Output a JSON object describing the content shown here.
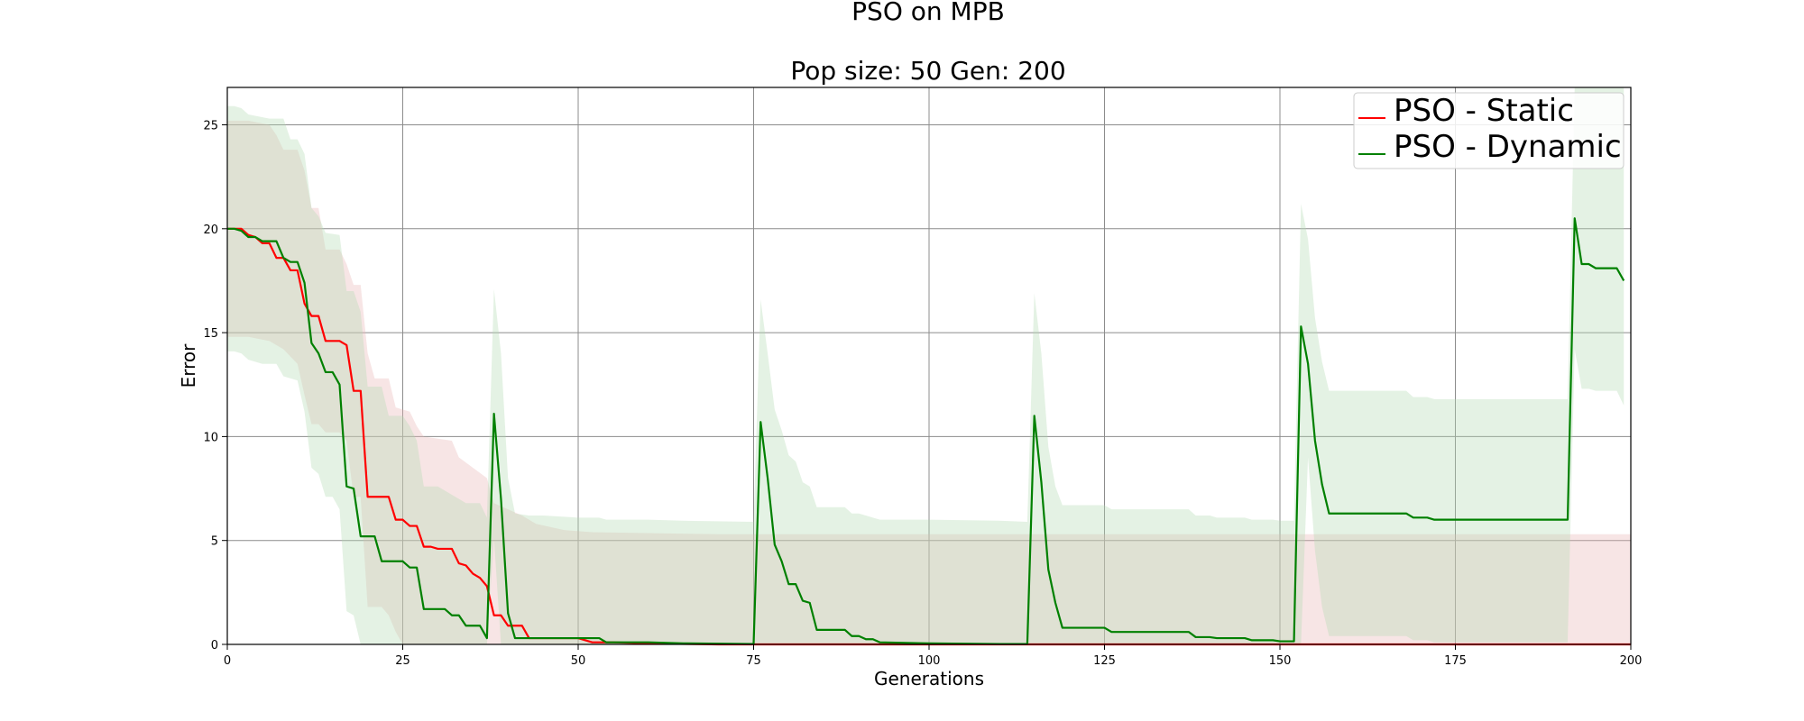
{
  "chart_data": {
    "type": "line",
    "title": "PSO on MPB",
    "subtitle": "Pop size: 50  Gen: 200",
    "xlabel": "Generations",
    "ylabel": "Error",
    "xlim": [
      0,
      200
    ],
    "ylim": [
      0,
      26.8
    ],
    "xticks": [
      0,
      25,
      50,
      75,
      100,
      125,
      150,
      175,
      200
    ],
    "yticks": [
      0,
      5,
      10,
      15,
      20,
      25
    ],
    "xtick_labels": [
      "0",
      "25",
      "50",
      "75",
      "100",
      "125",
      "150",
      "175",
      "200"
    ],
    "ytick_labels": [
      "0",
      "5",
      "10",
      "15",
      "20",
      "25"
    ],
    "grid": true,
    "legend_position": "top-right",
    "series": [
      {
        "name": "PSO - Static",
        "color": "#ff0000",
        "band_color": "#e8b4b4",
        "mean": [
          [
            0,
            20
          ],
          [
            1,
            20
          ],
          [
            2,
            20
          ],
          [
            3,
            19.7
          ],
          [
            4,
            19.6
          ],
          [
            5,
            19.3
          ],
          [
            6,
            19.3
          ],
          [
            7,
            18.6
          ],
          [
            8,
            18.6
          ],
          [
            9,
            18
          ],
          [
            10,
            18
          ],
          [
            11,
            16.4
          ],
          [
            12,
            15.8
          ],
          [
            13,
            15.8
          ],
          [
            14,
            14.6
          ],
          [
            15,
            14.6
          ],
          [
            16,
            14.6
          ],
          [
            17,
            14.4
          ],
          [
            18,
            12.2
          ],
          [
            19,
            12.2
          ],
          [
            20,
            7.1
          ],
          [
            21,
            7.1
          ],
          [
            22,
            7.1
          ],
          [
            23,
            7.1
          ],
          [
            24,
            6
          ],
          [
            25,
            6
          ],
          [
            26,
            5.7
          ],
          [
            27,
            5.7
          ],
          [
            28,
            4.7
          ],
          [
            29,
            4.7
          ],
          [
            30,
            4.6
          ],
          [
            31,
            4.6
          ],
          [
            32,
            4.6
          ],
          [
            33,
            3.9
          ],
          [
            34,
            3.8
          ],
          [
            35,
            3.4
          ],
          [
            36,
            3.2
          ],
          [
            37,
            2.8
          ],
          [
            38,
            1.4
          ],
          [
            39,
            1.4
          ],
          [
            40,
            0.9
          ],
          [
            41,
            0.9
          ],
          [
            42,
            0.9
          ],
          [
            43,
            0.3
          ],
          [
            45,
            0.3
          ],
          [
            50,
            0.3
          ],
          [
            52,
            0.1
          ],
          [
            55,
            0.1
          ],
          [
            60,
            0.05
          ],
          [
            70,
            0
          ],
          [
            200,
            0
          ]
        ],
        "upper": [
          [
            0,
            25.2
          ],
          [
            3,
            25.2
          ],
          [
            6,
            25
          ],
          [
            7,
            24.5
          ],
          [
            8,
            23.8
          ],
          [
            10,
            23.8
          ],
          [
            11,
            22.8
          ],
          [
            12,
            21
          ],
          [
            13,
            21
          ],
          [
            14,
            19
          ],
          [
            16,
            19
          ],
          [
            17,
            18.3
          ],
          [
            18,
            17.3
          ],
          [
            19,
            17.3
          ],
          [
            20,
            14
          ],
          [
            21,
            12.8
          ],
          [
            22,
            12.8
          ],
          [
            23,
            12.8
          ],
          [
            24,
            11.4
          ],
          [
            26,
            11.2
          ],
          [
            27,
            10.5
          ],
          [
            28,
            10
          ],
          [
            30,
            9.9
          ],
          [
            32,
            9.8
          ],
          [
            33,
            9
          ],
          [
            35,
            8.5
          ],
          [
            37,
            8
          ],
          [
            38,
            6.8
          ],
          [
            40,
            6.5
          ],
          [
            42,
            6.2
          ],
          [
            44,
            5.8
          ],
          [
            48,
            5.5
          ],
          [
            52,
            5.4
          ],
          [
            70,
            5.3
          ],
          [
            200,
            5.3
          ]
        ],
        "lower": [
          [
            0,
            14.8
          ],
          [
            3,
            14.8
          ],
          [
            6,
            14.6
          ],
          [
            8,
            14.2
          ],
          [
            10,
            13.5
          ],
          [
            11,
            12
          ],
          [
            12,
            10.6
          ],
          [
            13,
            10.6
          ],
          [
            14,
            10.2
          ],
          [
            16,
            10.2
          ],
          [
            17,
            9.8
          ],
          [
            18,
            7.1
          ],
          [
            19,
            7.1
          ],
          [
            20,
            1.8
          ],
          [
            22,
            1.8
          ],
          [
            23,
            1.4
          ],
          [
            24,
            0.6
          ],
          [
            25,
            0
          ],
          [
            200,
            0
          ]
        ]
      },
      {
        "name": "PSO - Dynamic",
        "color": "#008000",
        "band_color": "#b3d9b3",
        "mean": [
          [
            0,
            20
          ],
          [
            1,
            20
          ],
          [
            2,
            19.9
          ],
          [
            3,
            19.6
          ],
          [
            4,
            19.6
          ],
          [
            5,
            19.4
          ],
          [
            6,
            19.4
          ],
          [
            7,
            19.4
          ],
          [
            8,
            18.6
          ],
          [
            9,
            18.4
          ],
          [
            10,
            18.4
          ],
          [
            11,
            17.4
          ],
          [
            12,
            14.5
          ],
          [
            13,
            14
          ],
          [
            14,
            13.1
          ],
          [
            15,
            13.1
          ],
          [
            16,
            12.5
          ],
          [
            17,
            7.6
          ],
          [
            18,
            7.5
          ],
          [
            19,
            5.2
          ],
          [
            20,
            5.2
          ],
          [
            21,
            5.2
          ],
          [
            22,
            4
          ],
          [
            23,
            4
          ],
          [
            24,
            4
          ],
          [
            25,
            4
          ],
          [
            26,
            3.7
          ],
          [
            27,
            3.7
          ],
          [
            28,
            1.7
          ],
          [
            29,
            1.7
          ],
          [
            30,
            1.7
          ],
          [
            31,
            1.7
          ],
          [
            32,
            1.4
          ],
          [
            33,
            1.4
          ],
          [
            34,
            0.9
          ],
          [
            35,
            0.9
          ],
          [
            36,
            0.9
          ],
          [
            37,
            0.3
          ],
          [
            38,
            11.1
          ],
          [
            39,
            7
          ],
          [
            40,
            1.5
          ],
          [
            41,
            0.3
          ],
          [
            43,
            0.3
          ],
          [
            45,
            0.3
          ],
          [
            53,
            0.3
          ],
          [
            54,
            0.1
          ],
          [
            60,
            0.1
          ],
          [
            65,
            0.05
          ],
          [
            75,
            0.02
          ],
          [
            76,
            10.7
          ],
          [
            77,
            8
          ],
          [
            78,
            4.8
          ],
          [
            79,
            4
          ],
          [
            80,
            2.9
          ],
          [
            81,
            2.9
          ],
          [
            82,
            2.1
          ],
          [
            83,
            2
          ],
          [
            84,
            0.7
          ],
          [
            88,
            0.7
          ],
          [
            89,
            0.4
          ],
          [
            90,
            0.4
          ],
          [
            91,
            0.25
          ],
          [
            92,
            0.25
          ],
          [
            93,
            0.1
          ],
          [
            100,
            0.05
          ],
          [
            110,
            0.02
          ],
          [
            114,
            0.02
          ],
          [
            115,
            11
          ],
          [
            116,
            7.8
          ],
          [
            117,
            3.6
          ],
          [
            118,
            2
          ],
          [
            119,
            0.8
          ],
          [
            125,
            0.8
          ],
          [
            126,
            0.6
          ],
          [
            137,
            0.6
          ],
          [
            138,
            0.35
          ],
          [
            140,
            0.35
          ],
          [
            141,
            0.3
          ],
          [
            145,
            0.3
          ],
          [
            146,
            0.2
          ],
          [
            149,
            0.2
          ],
          [
            150,
            0.15
          ],
          [
            152,
            0.15
          ],
          [
            153,
            15.3
          ],
          [
            154,
            13.5
          ],
          [
            155,
            9.8
          ],
          [
            156,
            7.7
          ],
          [
            157,
            6.3
          ],
          [
            168,
            6.3
          ],
          [
            169,
            6.1
          ],
          [
            171,
            6.1
          ],
          [
            172,
            6
          ],
          [
            191,
            6
          ],
          [
            192,
            20.5
          ],
          [
            193,
            18.3
          ],
          [
            194,
            18.3
          ],
          [
            195,
            18.1
          ],
          [
            198,
            18.1
          ],
          [
            199,
            17.5
          ]
        ],
        "upper": [
          [
            0,
            25.9
          ],
          [
            1,
            25.9
          ],
          [
            2,
            25.8
          ],
          [
            3,
            25.5
          ],
          [
            6,
            25.3
          ],
          [
            8,
            25.3
          ],
          [
            9,
            24.3
          ],
          [
            10,
            24.3
          ],
          [
            11,
            23.6
          ],
          [
            12,
            21
          ],
          [
            13,
            20.6
          ],
          [
            14,
            19.8
          ],
          [
            16,
            19.7
          ],
          [
            17,
            17
          ],
          [
            18,
            17
          ],
          [
            19,
            16
          ],
          [
            20,
            12.4
          ],
          [
            22,
            12.4
          ],
          [
            23,
            11
          ],
          [
            25,
            11
          ],
          [
            26,
            10.5
          ],
          [
            27,
            9.8
          ],
          [
            28,
            7.6
          ],
          [
            30,
            7.6
          ],
          [
            32,
            7.2
          ],
          [
            34,
            6.8
          ],
          [
            36,
            6.8
          ],
          [
            37,
            6.1
          ],
          [
            38,
            17.1
          ],
          [
            39,
            14
          ],
          [
            40,
            8
          ],
          [
            41,
            6.3
          ],
          [
            43,
            6.2
          ],
          [
            45,
            6.2
          ],
          [
            50,
            6.1
          ],
          [
            53,
            6.1
          ],
          [
            54,
            6
          ],
          [
            60,
            6
          ],
          [
            65,
            5.95
          ],
          [
            75,
            5.9
          ],
          [
            76,
            16.6
          ],
          [
            77,
            14
          ],
          [
            78,
            11.3
          ],
          [
            79,
            10.3
          ],
          [
            80,
            9.1
          ],
          [
            81,
            8.8
          ],
          [
            82,
            7.8
          ],
          [
            83,
            7.6
          ],
          [
            84,
            6.6
          ],
          [
            88,
            6.6
          ],
          [
            89,
            6.3
          ],
          [
            90,
            6.3
          ],
          [
            91,
            6.2
          ],
          [
            92,
            6.1
          ],
          [
            93,
            6
          ],
          [
            100,
            6
          ],
          [
            110,
            5.95
          ],
          [
            114,
            5.9
          ],
          [
            115,
            16.9
          ],
          [
            116,
            14
          ],
          [
            117,
            9.5
          ],
          [
            118,
            7.6
          ],
          [
            119,
            6.7
          ],
          [
            125,
            6.7
          ],
          [
            126,
            6.5
          ],
          [
            137,
            6.5
          ],
          [
            138,
            6.2
          ],
          [
            140,
            6.2
          ],
          [
            141,
            6.1
          ],
          [
            145,
            6.1
          ],
          [
            146,
            6
          ],
          [
            149,
            6
          ],
          [
            150,
            5.95
          ],
          [
            152,
            5.95
          ],
          [
            153,
            21.2
          ],
          [
            154,
            19.5
          ],
          [
            155,
            15.7
          ],
          [
            156,
            13.6
          ],
          [
            157,
            12.2
          ],
          [
            168,
            12.2
          ],
          [
            169,
            11.9
          ],
          [
            171,
            11.9
          ],
          [
            172,
            11.8
          ],
          [
            191,
            11.8
          ],
          [
            192,
            26.8
          ],
          [
            199,
            26.8
          ]
        ],
        "lower": [
          [
            0,
            14.1
          ],
          [
            1,
            14.1
          ],
          [
            2,
            14
          ],
          [
            3,
            13.7
          ],
          [
            5,
            13.5
          ],
          [
            7,
            13.5
          ],
          [
            8,
            12.9
          ],
          [
            10,
            12.7
          ],
          [
            11,
            11.2
          ],
          [
            12,
            8.5
          ],
          [
            13,
            8.2
          ],
          [
            14,
            7.1
          ],
          [
            15,
            7.1
          ],
          [
            16,
            6.5
          ],
          [
            17,
            1.6
          ],
          [
            18,
            1.4
          ],
          [
            19,
            0
          ],
          [
            37,
            0
          ],
          [
            38,
            5.1
          ],
          [
            39,
            0
          ],
          [
            153,
            0
          ],
          [
            154,
            9
          ],
          [
            155,
            4.5
          ],
          [
            156,
            1.8
          ],
          [
            157,
            0.4
          ],
          [
            168,
            0.4
          ],
          [
            169,
            0.2
          ],
          [
            171,
            0.2
          ],
          [
            172,
            0.1
          ],
          [
            191,
            0.1
          ],
          [
            192,
            14.2
          ],
          [
            193,
            12.3
          ],
          [
            194,
            12.3
          ],
          [
            195,
            12.2
          ],
          [
            198,
            12.2
          ],
          [
            199,
            11.5
          ]
        ]
      }
    ]
  }
}
